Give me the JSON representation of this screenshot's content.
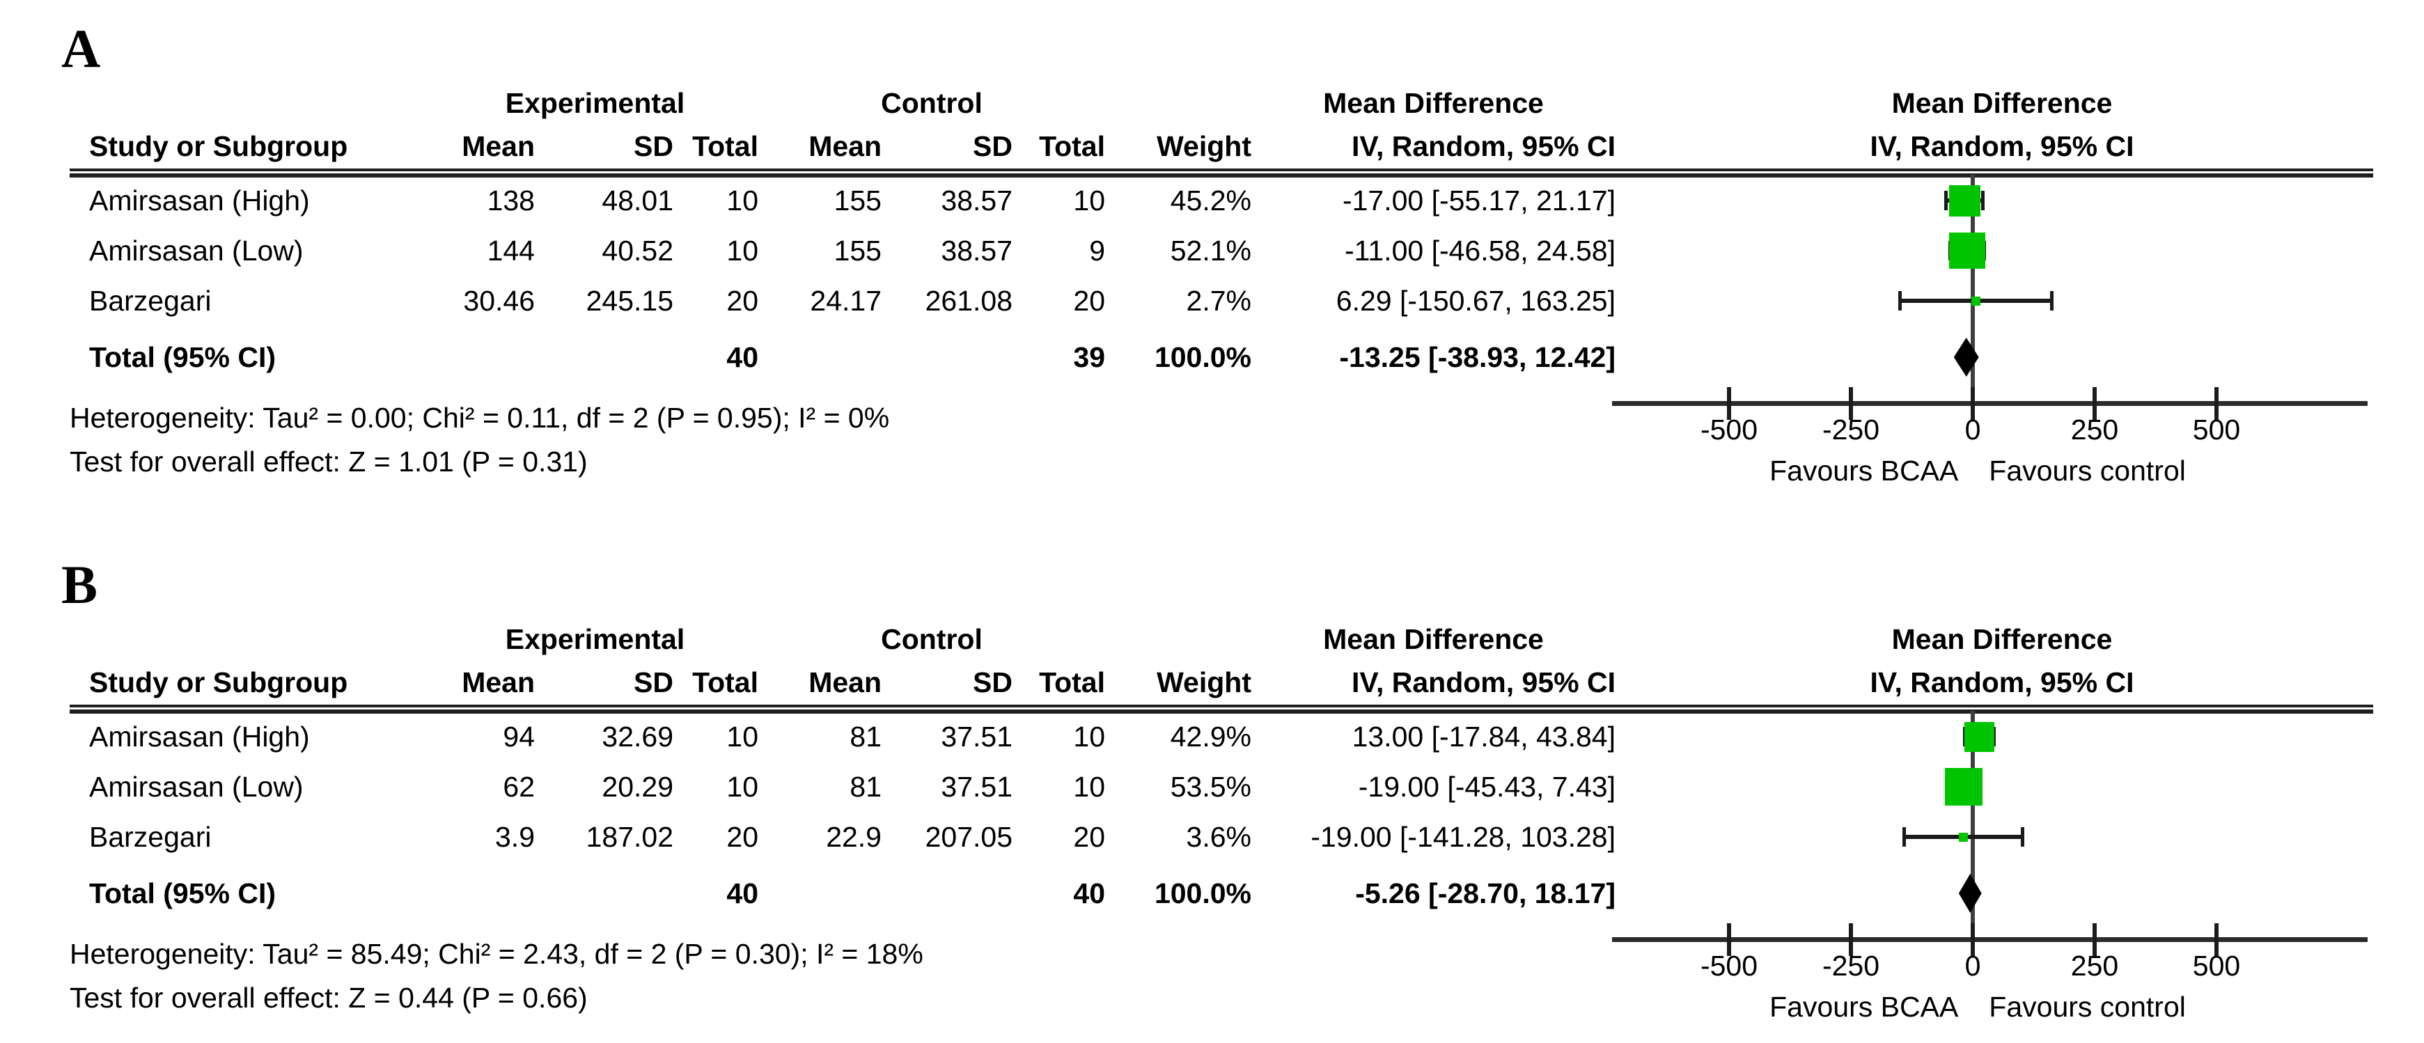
{
  "colors": {
    "marker": "#00c400",
    "diamond": "#000000",
    "line": "#2b2b2b"
  },
  "table_headers": {
    "study": "Study or Subgroup",
    "mean": "Mean",
    "sd": "SD",
    "total": "Total",
    "weight": "Weight",
    "ci_method": "IV, Random, 95% CI",
    "experimental": "Experimental",
    "control": "Control",
    "mean_difference": "Mean Difference"
  },
  "chart_data": [
    {
      "type": "scatter",
      "subtype": "forest-plot",
      "panel_label": "A",
      "effect_header": "Mean Difference",
      "method_header": "IV, Random, 95% CI",
      "x_axis": {
        "ticks": [
          -500,
          -250,
          0,
          250,
          500
        ],
        "xlim": [
          -740,
          810
        ],
        "grid": false
      },
      "favours_left": "Favours BCAA",
      "favours_right": "Favours control",
      "studies": [
        {
          "study": "Amirsasan (High)",
          "exp_mean": "138",
          "exp_sd": "48.01",
          "exp_total": "10",
          "ctrl_mean": "155",
          "ctrl_sd": "38.57",
          "ctrl_total": "10",
          "weight": "45.2%",
          "ci_text": "-17.00 [-55.17, 21.17]",
          "md": -17.0,
          "ci_low": -55.17,
          "ci_high": 21.17,
          "weight_pct": 45.2
        },
        {
          "study": "Amirsasan (Low)",
          "exp_mean": "144",
          "exp_sd": "40.52",
          "exp_total": "10",
          "ctrl_mean": "155",
          "ctrl_sd": "38.57",
          "ctrl_total": "9",
          "weight": "52.1%",
          "ci_text": "-11.00 [-46.58, 24.58]",
          "md": -11.0,
          "ci_low": -46.58,
          "ci_high": 24.58,
          "weight_pct": 52.1
        },
        {
          "study": "Barzegari",
          "exp_mean": "30.46",
          "exp_sd": "245.15",
          "exp_total": "20",
          "ctrl_mean": "24.17",
          "ctrl_sd": "261.08",
          "ctrl_total": "20",
          "weight": "2.7%",
          "ci_text": "6.29 [-150.67, 163.25]",
          "md": 6.29,
          "ci_low": -150.67,
          "ci_high": 163.25,
          "weight_pct": 2.7
        }
      ],
      "total": {
        "label": "Total (95% CI)",
        "exp_total": "40",
        "ctrl_total": "39",
        "weight": "100.0%",
        "ci_text": "-13.25 [-38.93, 12.42]",
        "md": -13.25,
        "ci_low": -38.93,
        "ci_high": 12.42
      },
      "heterogeneity_text": "Heterogeneity: Tau² = 0.00; Chi² = 0.11, df = 2 (P = 0.95); I² = 0%",
      "overall_effect_text": "Test for overall effect: Z = 1.01 (P = 0.31)"
    },
    {
      "type": "scatter",
      "subtype": "forest-plot",
      "panel_label": "B",
      "effect_header": "Mean Difference",
      "method_header": "IV, Random, 95% CI",
      "x_axis": {
        "ticks": [
          -500,
          -250,
          0,
          250,
          500
        ],
        "xlim": [
          -740,
          810
        ],
        "grid": false
      },
      "favours_left": "Favours BCAA",
      "favours_right": "Favours control",
      "studies": [
        {
          "study": "Amirsasan (High)",
          "exp_mean": "94",
          "exp_sd": "32.69",
          "exp_total": "10",
          "ctrl_mean": "81",
          "ctrl_sd": "37.51",
          "ctrl_total": "10",
          "weight": "42.9%",
          "ci_text": "13.00 [-17.84, 43.84]",
          "md": 13.0,
          "ci_low": -17.84,
          "ci_high": 43.84,
          "weight_pct": 42.9
        },
        {
          "study": "Amirsasan (Low)",
          "exp_mean": "62",
          "exp_sd": "20.29",
          "exp_total": "10",
          "ctrl_mean": "81",
          "ctrl_sd": "37.51",
          "ctrl_total": "10",
          "weight": "53.5%",
          "ci_text": "-19.00 [-45.43, 7.43]",
          "md": -19.0,
          "ci_low": -45.43,
          "ci_high": 7.43,
          "weight_pct": 53.5
        },
        {
          "study": "Barzegari",
          "exp_mean": "3.9",
          "exp_sd": "187.02",
          "exp_total": "20",
          "ctrl_mean": "22.9",
          "ctrl_sd": "207.05",
          "ctrl_total": "20",
          "weight": "3.6%",
          "ci_text": "-19.00 [-141.28, 103.28]",
          "md": -19.0,
          "ci_low": -141.28,
          "ci_high": 103.28,
          "weight_pct": 3.6
        }
      ],
      "total": {
        "label": "Total (95% CI)",
        "exp_total": "40",
        "ctrl_total": "40",
        "weight": "100.0%",
        "ci_text": "-5.26 [-28.70, 18.17]",
        "md": -5.26,
        "ci_low": -28.7,
        "ci_high": 18.17
      },
      "heterogeneity_text": "Heterogeneity: Tau² = 85.49; Chi² = 2.43, df = 2 (P = 0.30); I² = 18%",
      "overall_effect_text": "Test for overall effect: Z = 0.44 (P = 0.66)"
    }
  ]
}
